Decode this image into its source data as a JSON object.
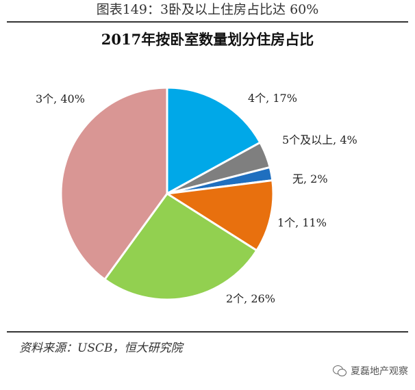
{
  "caption": "图表149：3卧及以上住房占比达 60%",
  "source": "资料来源：USCB，恒大研究院",
  "watermark": "夏磊地产观察",
  "chart_data": {
    "type": "pie",
    "title": "2017年按卧室数量划分住房占比",
    "slices": [
      {
        "label": "4个, 17%",
        "value": 17,
        "color": "#00a8e8"
      },
      {
        "label": "5个及以上, 4%",
        "value": 4,
        "color": "#7f7f7f"
      },
      {
        "label": "无, 2%",
        "value": 2,
        "color": "#1f6fbf"
      },
      {
        "label": "1个, 11%",
        "value": 11,
        "color": "#e8700e"
      },
      {
        "label": "2个, 26%",
        "value": 26,
        "color": "#92d050"
      },
      {
        "label": "3个, 40%",
        "value": 40,
        "color": "#d99694"
      }
    ],
    "start_angle_deg": 0,
    "direction": "clockwise",
    "legend": "none"
  }
}
